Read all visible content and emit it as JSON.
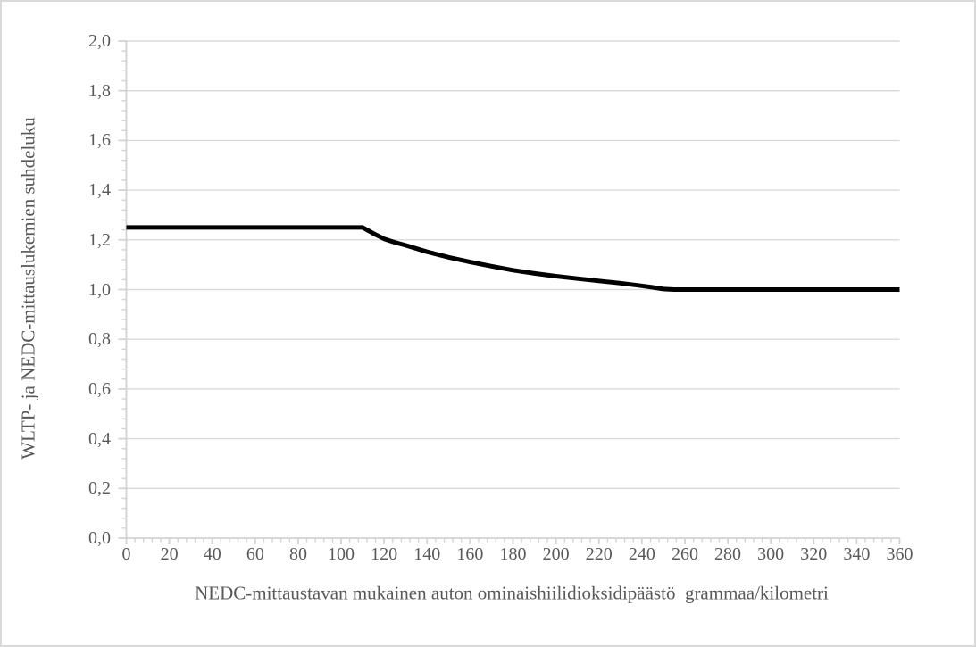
{
  "figure": {
    "background": "#ffffff",
    "border_color": "#d9d9d9"
  },
  "chart_data": {
    "type": "line",
    "title": "",
    "xlabel": "NEDC-mittaustavan mukainen auton ominaishiilidioksidipäästö  grammaa/kilometri",
    "ylabel": "WLTP- ja NEDC-mittauslukemien suhdeluku",
    "xlim": [
      0,
      360
    ],
    "ylim": [
      0,
      2
    ],
    "x_major_unit": 20,
    "x_minor_unit": 4,
    "y_major_unit": 0.2,
    "y_minor_unit": 0.04,
    "grid": "horizontal-major-only",
    "legend": "none",
    "gridline_color": "#d9d9d9",
    "axis_color": "#d3d3d3",
    "tick_label_color": "#595959",
    "x_ticks": [
      0,
      20,
      40,
      60,
      80,
      100,
      120,
      140,
      160,
      180,
      200,
      220,
      240,
      260,
      280,
      300,
      320,
      340,
      360
    ],
    "y_ticks": [
      {
        "value": 0.0,
        "label": "0,0"
      },
      {
        "value": 0.2,
        "label": "0,2"
      },
      {
        "value": 0.4,
        "label": "0,4"
      },
      {
        "value": 0.6,
        "label": "0,6"
      },
      {
        "value": 0.8,
        "label": "0,8"
      },
      {
        "value": 1.0,
        "label": "1,0"
      },
      {
        "value": 1.2,
        "label": "1,2"
      },
      {
        "value": 1.4,
        "label": "1,4"
      },
      {
        "value": 1.6,
        "label": "1,6"
      },
      {
        "value": 1.8,
        "label": "1,8"
      },
      {
        "value": 2.0,
        "label": "2,0"
      }
    ],
    "series": [
      {
        "color": "#000000",
        "width": 5,
        "points": [
          [
            0,
            1.25
          ],
          [
            110,
            1.25
          ],
          [
            115,
            1.226
          ],
          [
            120,
            1.204
          ],
          [
            125,
            1.19
          ],
          [
            130,
            1.178
          ],
          [
            140,
            1.152
          ],
          [
            150,
            1.13
          ],
          [
            160,
            1.111
          ],
          [
            170,
            1.094
          ],
          [
            180,
            1.078
          ],
          [
            190,
            1.065
          ],
          [
            200,
            1.054
          ],
          [
            210,
            1.044
          ],
          [
            220,
            1.035
          ],
          [
            230,
            1.026
          ],
          [
            240,
            1.015
          ],
          [
            245,
            1.009
          ],
          [
            250,
            1.002
          ],
          [
            255,
            1.0
          ],
          [
            360,
            1.0
          ]
        ]
      }
    ]
  }
}
